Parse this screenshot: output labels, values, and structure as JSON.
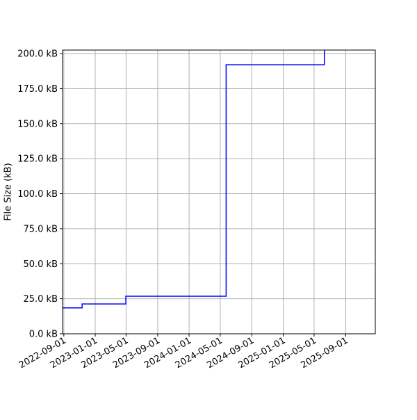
{
  "chart_data": {
    "type": "line",
    "title": "",
    "xlabel": "",
    "ylabel": "File Size (kB)",
    "x_axis_type": "date",
    "step": "post",
    "xlim": [
      "2022-08-27",
      "2025-12-25"
    ],
    "ylim": [
      0,
      202.5
    ],
    "grid": true,
    "x_ticks": [
      "2022-09-01",
      "2023-01-01",
      "2023-05-01",
      "2023-09-01",
      "2024-01-01",
      "2024-05-01",
      "2024-09-01",
      "2025-01-01",
      "2025-05-01",
      "2025-09-01"
    ],
    "y_ticks": [
      0,
      25,
      50,
      75,
      100,
      125,
      150,
      175,
      200
    ],
    "y_tick_labels": [
      "0.0 kB",
      "25.0 kB",
      "50.0 kB",
      "75.0 kB",
      "100.0 kB",
      "125.0 kB",
      "150.0 kB",
      "175.0 kB",
      "200.0 kB"
    ],
    "series": [
      {
        "color": "#0000ff",
        "points": [
          {
            "x": "2022-08-27",
            "y": 18.5
          },
          {
            "x": "2022-11-11",
            "y": 21.3
          },
          {
            "x": "2023-04-30",
            "y": 26.8
          },
          {
            "x": "2024-05-24",
            "y": 192.0
          },
          {
            "x": "2025-06-10",
            "y": 202.5
          }
        ]
      }
    ]
  }
}
